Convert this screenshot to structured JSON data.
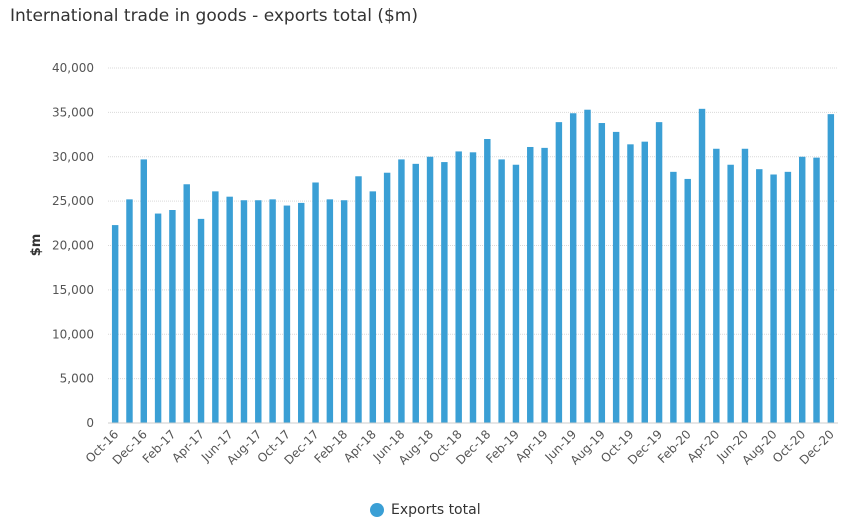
{
  "chart_data": {
    "type": "bar",
    "title": "International trade in goods - exports total ($m)",
    "xlabel": "",
    "ylabel": "$m",
    "ylim": [
      0,
      40000
    ],
    "yticks": [
      0,
      5000,
      10000,
      15000,
      20000,
      25000,
      30000,
      35000,
      40000
    ],
    "ytick_labels": [
      "0",
      "5,000",
      "10,000",
      "15,000",
      "20,000",
      "25,000",
      "30,000",
      "35,000",
      "40,000"
    ],
    "grid": true,
    "legend_position": "bottom-center",
    "categories": [
      "Oct-16",
      "Nov-16",
      "Dec-16",
      "Jan-17",
      "Feb-17",
      "Mar-17",
      "Apr-17",
      "May-17",
      "Jun-17",
      "Jul-17",
      "Aug-17",
      "Sep-17",
      "Oct-17",
      "Nov-17",
      "Dec-17",
      "Jan-18",
      "Feb-18",
      "Mar-18",
      "Apr-18",
      "May-18",
      "Jun-18",
      "Jul-18",
      "Aug-18",
      "Sep-18",
      "Oct-18",
      "Nov-18",
      "Dec-18",
      "Jan-19",
      "Feb-19",
      "Mar-19",
      "Apr-19",
      "May-19",
      "Jun-19",
      "Jul-19",
      "Aug-19",
      "Sep-19",
      "Oct-19",
      "Nov-19",
      "Dec-19",
      "Jan-20",
      "Feb-20",
      "Mar-20",
      "Apr-20",
      "May-20",
      "Jun-20",
      "Jul-20",
      "Aug-20",
      "Sep-20",
      "Oct-20",
      "Nov-20",
      "Dec-20"
    ],
    "x_tick_labels": [
      "Oct-16",
      "Dec-16",
      "Feb-17",
      "Apr-17",
      "Jun-17",
      "Aug-17",
      "Oct-17",
      "Dec-17",
      "Feb-18",
      "Apr-18",
      "Jun-18",
      "Aug-18",
      "Oct-18",
      "Dec-18",
      "Feb-19",
      "Apr-19",
      "Jun-19",
      "Aug-19",
      "Oct-19",
      "Dec-19",
      "Feb-20",
      "Apr-20",
      "Jun-20",
      "Aug-20",
      "Oct-20",
      "Dec-20"
    ],
    "series": [
      {
        "name": "Exports total",
        "color": "#3a9fd5",
        "values": [
          22300,
          25200,
          29700,
          23600,
          24000,
          26900,
          23000,
          26100,
          25500,
          25100,
          25100,
          25200,
          24500,
          24800,
          27100,
          25200,
          25100,
          27800,
          26100,
          28200,
          29700,
          29200,
          30000,
          29400,
          30600,
          30500,
          32000,
          29700,
          29100,
          31100,
          31000,
          33900,
          34900,
          35300,
          33800,
          32800,
          31400,
          31700,
          33900,
          28300,
          27500,
          35400,
          30900,
          29100,
          30900,
          28600,
          28000,
          28300,
          30000,
          29900,
          34800
        ]
      }
    ]
  }
}
